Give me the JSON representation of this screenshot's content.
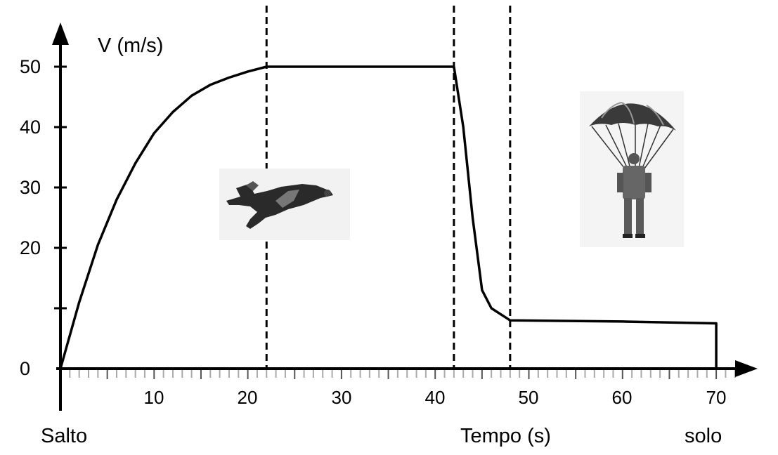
{
  "chart_data": {
    "type": "line",
    "ylabel": "V (m/s)",
    "xlabel": "Tempo (s)",
    "start_label": "Salto",
    "end_label": "solo",
    "y_ticks": [
      "0",
      "20",
      "30",
      "40",
      "50"
    ],
    "x_ticks": [
      "10",
      "20",
      "30",
      "40",
      "50",
      "60",
      "70"
    ],
    "xlim": [
      0,
      75
    ],
    "ylim": [
      0,
      50
    ],
    "series": [
      {
        "x": [
          0,
          2,
          4,
          6,
          8,
          10,
          12,
          14,
          16,
          18,
          20,
          22,
          30,
          40,
          42,
          43,
          44,
          45,
          46,
          48,
          60,
          70,
          70
        ],
        "y": [
          0,
          11,
          20.5,
          28,
          34,
          39,
          42.5,
          45.2,
          47,
          48.2,
          49.2,
          50,
          50,
          50,
          50,
          40,
          25,
          13,
          10,
          8,
          7.8,
          7.5,
          0
        ]
      }
    ],
    "phase_lines_x": [
      22,
      42,
      48
    ],
    "icons": [
      "freefall-skydiver-icon",
      "parachutist-icon"
    ]
  }
}
